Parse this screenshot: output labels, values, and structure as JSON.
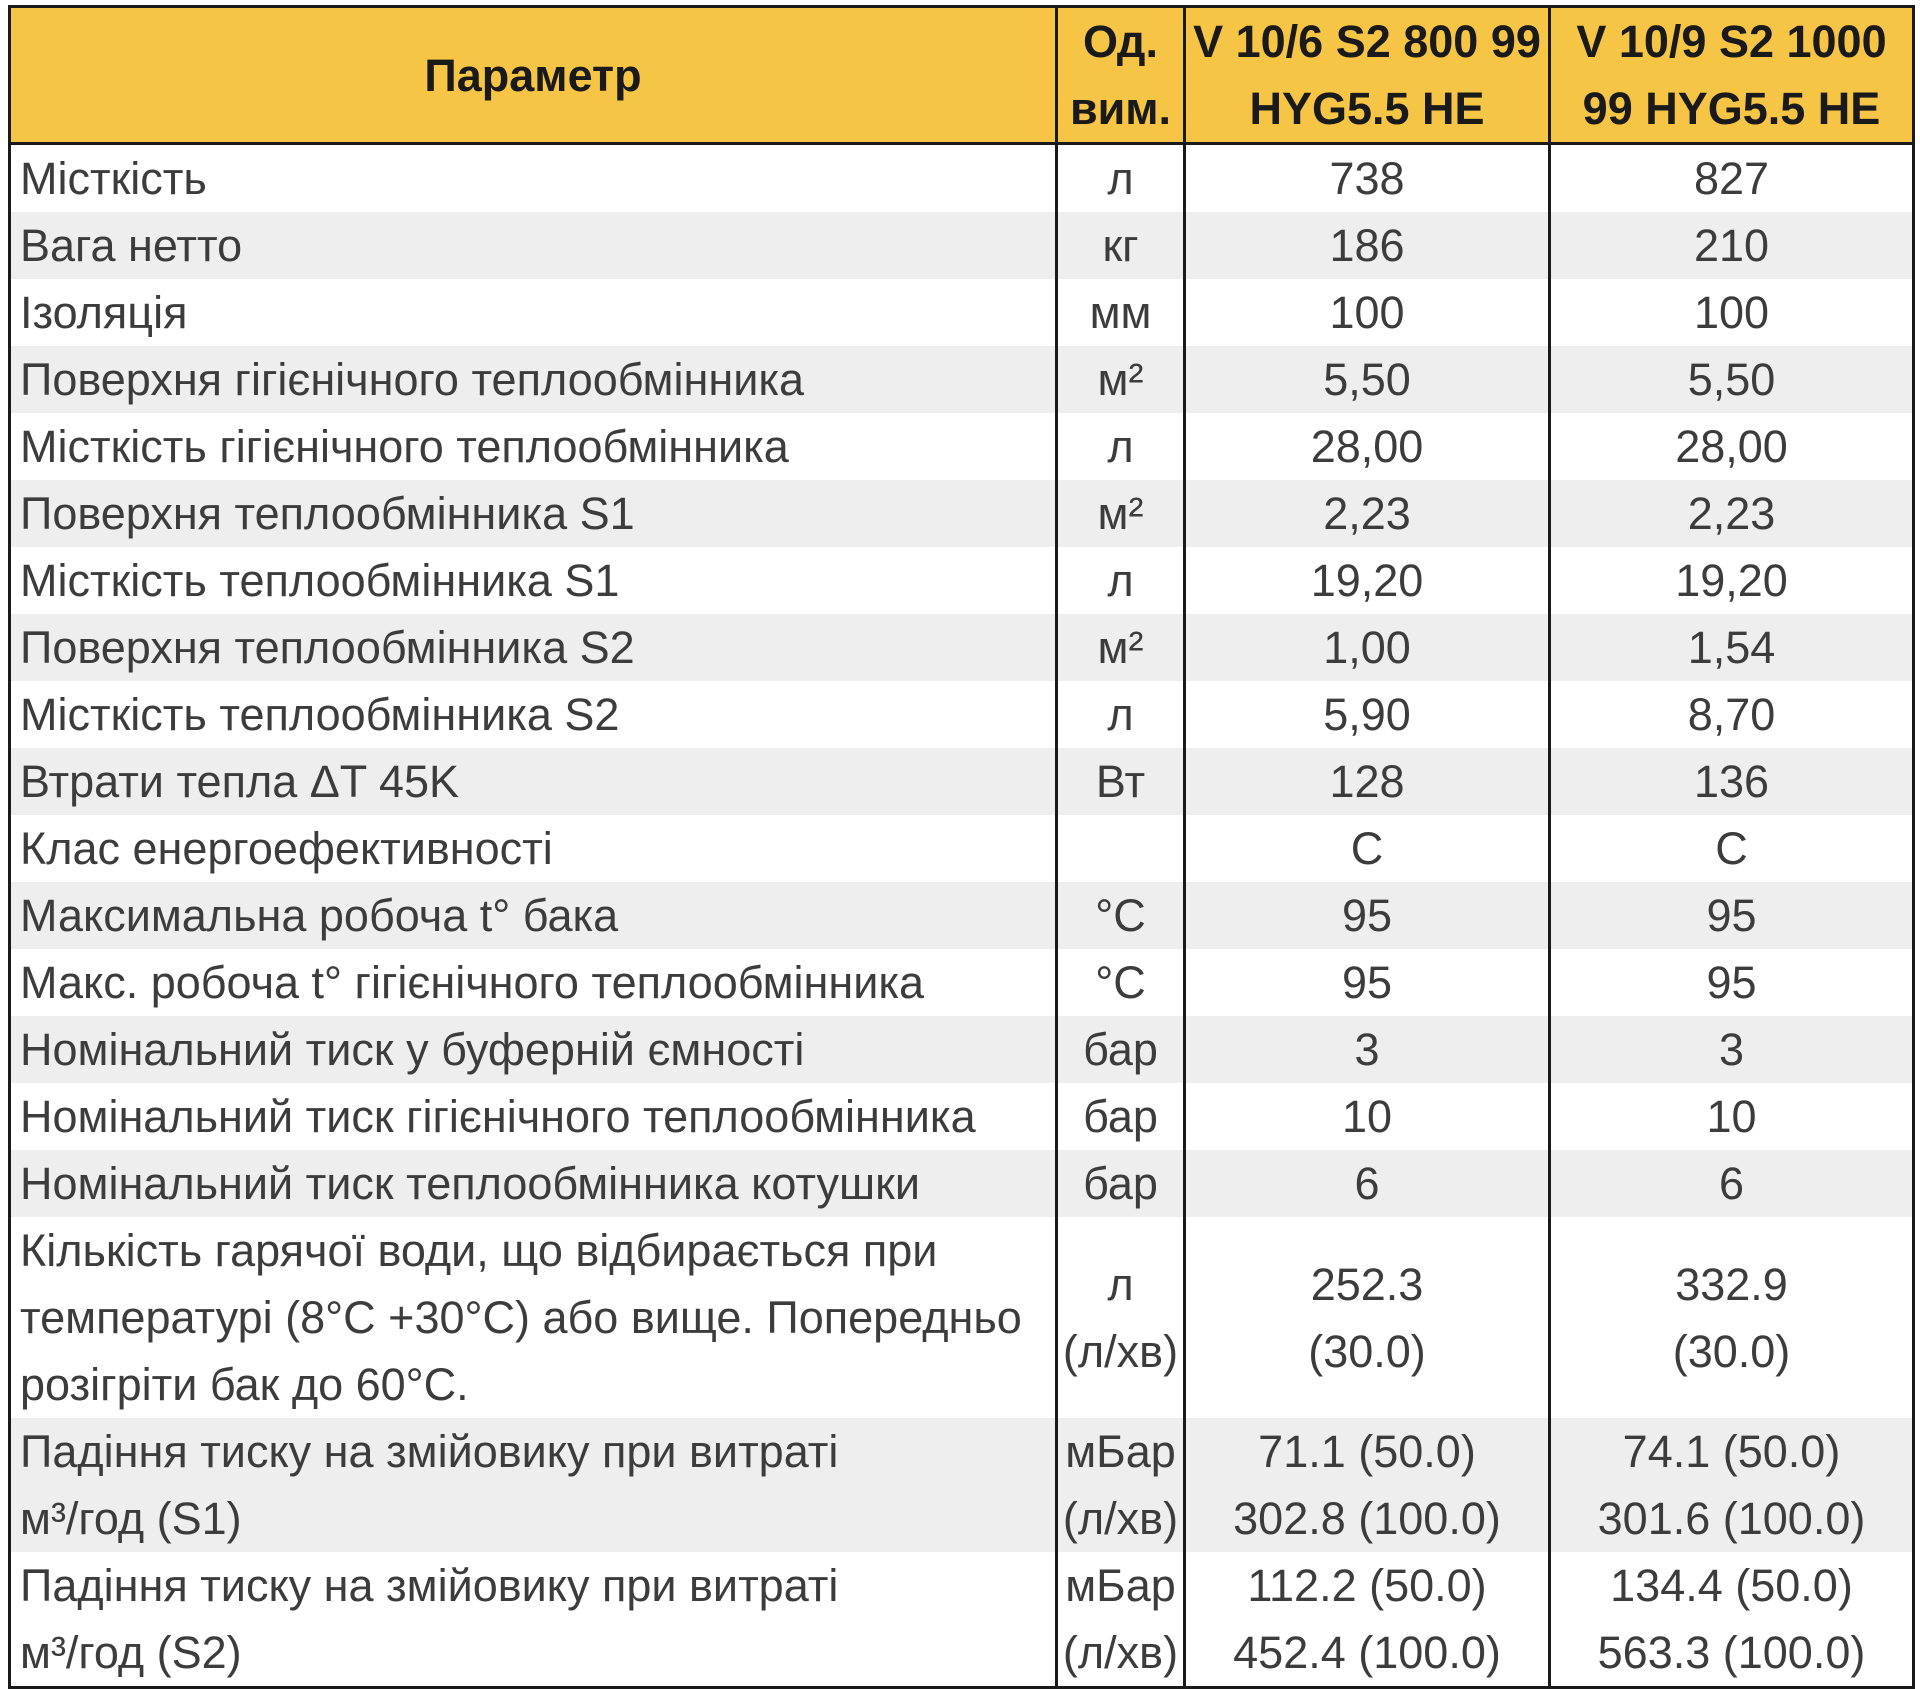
{
  "table": {
    "headers": {
      "param": "Параметр",
      "unit": "Од.\nвим.",
      "model1": "V 10/6 S2 800 99\nHYG5.5 HE",
      "model2": "V 10/9 S2 1000\n99 HYG5.5 HE"
    },
    "rows": [
      {
        "param": "Місткість",
        "unit": "л",
        "v1": "738",
        "v2": "827"
      },
      {
        "param": "Вага нетто",
        "unit": "кг",
        "v1": "186",
        "v2": "210"
      },
      {
        "param": "Ізоляція",
        "unit": "мм",
        "v1": "100",
        "v2": "100"
      },
      {
        "param": "Поверхня гігієнічного теплообмінника",
        "unit": "м²",
        "v1": "5,50",
        "v2": "5,50"
      },
      {
        "param": "Місткість гігієнічного теплообмінника",
        "unit": "л",
        "v1": "28,00",
        "v2": "28,00"
      },
      {
        "param": "Поверхня теплообмінника S1",
        "unit": "м²",
        "v1": "2,23",
        "v2": "2,23"
      },
      {
        "param": "Місткість теплообмінника S1",
        "unit": "л",
        "v1": "19,20",
        "v2": "19,20"
      },
      {
        "param": "Поверхня теплообмінника S2",
        "unit": "м²",
        "v1": "1,00",
        "v2": "1,54"
      },
      {
        "param": "Місткість теплообмінника S2",
        "unit": "л",
        "v1": "5,90",
        "v2": "8,70"
      },
      {
        "param": "Втрати тепла ΔT 45K",
        "unit": "Вт",
        "v1": "128",
        "v2": "136"
      },
      {
        "param": "Клас енергоефективності",
        "unit": "",
        "v1": "C",
        "v2": "C"
      },
      {
        "param": "Максимальна робоча t° бака",
        "unit": "°C",
        "v1": "95",
        "v2": "95"
      },
      {
        "param": "Макс. робоча t° гігієнічного теплообмінника",
        "unit": "°C",
        "v1": "95",
        "v2": "95"
      },
      {
        "param": "Номінальний тиск у буферній ємності",
        "unit": "бар",
        "v1": "3",
        "v2": "3"
      },
      {
        "param": "Номінальний тиск гігієнічного теплообмінника",
        "unit": "бар",
        "v1": "10",
        "v2": "10"
      },
      {
        "param": "Номінальний тиск теплообмінника котушки",
        "unit": "бар",
        "v1": "6",
        "v2": "6"
      },
      {
        "param": "Кількість гарячої води, що відбирається при\nтемпературі (8°C +30°C) або вище. Попередньо\nрозігріти бак до 60°C.",
        "unit": "л\n(л/хв)",
        "v1": "252.3\n(30.0)",
        "v2": "332.9\n(30.0)"
      },
      {
        "param": "Падіння тиску на змійовику при витраті\nм³/год (S1)",
        "unit": "мБар\n(л/хв)",
        "v1": "71.1 (50.0)\n302.8 (100.0)",
        "v2": "74.1 (50.0)\n301.6 (100.0)"
      },
      {
        "param": "Падіння тиску на змійовику при витраті\nм³/год (S2)",
        "unit": "мБар\n(л/хв)",
        "v1": "112.2 (50.0)\n452.4 (100.0)",
        "v2": "134.4 (50.0)\n563.3 (100.0)"
      }
    ]
  }
}
